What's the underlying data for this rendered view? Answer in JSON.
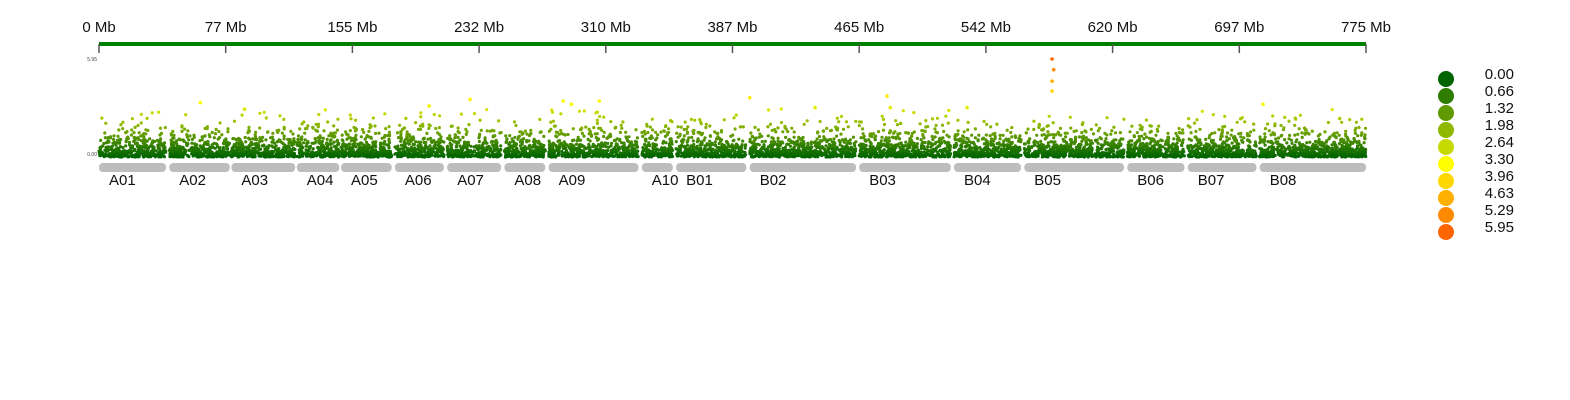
{
  "chart_data": {
    "type": "scatter",
    "title": "",
    "xlabel": "",
    "ylabel": "",
    "genome_axis": {
      "unit": "Mb",
      "ticks": [
        "0 Mb",
        "77 Mb",
        "155 Mb",
        "232 Mb",
        "310 Mb",
        "387 Mb",
        "465 Mb",
        "542 Mb",
        "620 Mb",
        "697 Mb",
        "775 Mb"
      ],
      "range_mb": [
        0,
        775
      ],
      "line_color": "#008000"
    },
    "y_axis": {
      "min_label": "0.00",
      "max_label": "5.95",
      "range": [
        0,
        5.95
      ]
    },
    "chromosomes": [
      {
        "name": "A01",
        "start": 0,
        "end": 41
      },
      {
        "name": "A02",
        "start": 43,
        "end": 80
      },
      {
        "name": "A03",
        "start": 81,
        "end": 120
      },
      {
        "name": "A04",
        "start": 121,
        "end": 147
      },
      {
        "name": "A05",
        "start": 148,
        "end": 179
      },
      {
        "name": "A06",
        "start": 181,
        "end": 211
      },
      {
        "name": "A07",
        "start": 213,
        "end": 246
      },
      {
        "name": "A08",
        "start": 248,
        "end": 273
      },
      {
        "name": "A09",
        "start": 275,
        "end": 330
      },
      {
        "name": "A10",
        "start": 332,
        "end": 351
      },
      {
        "name": "B01",
        "start": 353,
        "end": 396
      },
      {
        "name": "B02",
        "start": 398,
        "end": 463
      },
      {
        "name": "B03",
        "start": 465,
        "end": 521
      },
      {
        "name": "B04",
        "start": 523,
        "end": 564
      },
      {
        "name": "B05",
        "start": 566,
        "end": 627
      },
      {
        "name": "B06",
        "start": 629,
        "end": 664
      },
      {
        "name": "B07",
        "start": 666,
        "end": 708
      },
      {
        "name": "B08",
        "start": 710,
        "end": 775
      }
    ],
    "peaks": [
      {
        "chr": "A02",
        "pos": 62,
        "value": 3.3
      },
      {
        "chr": "A03",
        "pos": 89,
        "value": 2.9
      },
      {
        "chr": "A06",
        "pos": 202,
        "value": 3.1
      },
      {
        "chr": "A07",
        "pos": 227,
        "value": 3.5
      },
      {
        "chr": "A09",
        "pos": 284,
        "value": 3.4
      },
      {
        "chr": "A09",
        "pos": 289,
        "value": 3.2
      },
      {
        "chr": "A09",
        "pos": 306,
        "value": 3.4
      },
      {
        "chr": "B02",
        "pos": 398,
        "value": 3.6
      },
      {
        "chr": "B02",
        "pos": 438,
        "value": 3.0
      },
      {
        "chr": "B03",
        "pos": 482,
        "value": 3.7
      },
      {
        "chr": "B03",
        "pos": 484,
        "value": 3.0
      },
      {
        "chr": "B04",
        "pos": 531,
        "value": 3.0
      },
      {
        "chr": "B05",
        "pos": 583,
        "value": 5.95
      },
      {
        "chr": "B05",
        "pos": 584,
        "value": 5.3
      },
      {
        "chr": "B05",
        "pos": 583,
        "value": 4.6
      },
      {
        "chr": "B05",
        "pos": 583,
        "value": 4.0
      },
      {
        "chr": "B08",
        "pos": 712,
        "value": 3.2
      }
    ],
    "legend": {
      "labels": [
        "0.00",
        "0.66",
        "1.32",
        "1.98",
        "2.64",
        "3.30",
        "3.96",
        "4.63",
        "5.29",
        "5.95"
      ],
      "colors": [
        "#006400",
        "#2e7d00",
        "#5f9a00",
        "#8fb800",
        "#c5d800",
        "#ffff00",
        "#ffd700",
        "#ffb000",
        "#ff8a00",
        "#ff6600"
      ]
    }
  }
}
